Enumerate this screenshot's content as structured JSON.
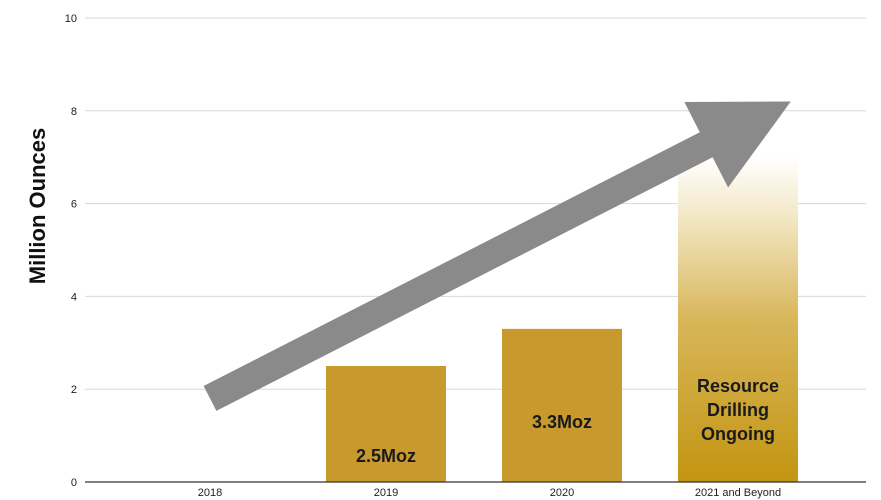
{
  "chart_data": {
    "type": "bar",
    "ylabel": "Million Ounces",
    "xlabel": "",
    "ylim": [
      0,
      10
    ],
    "yticks": [
      0,
      2,
      4,
      6,
      8,
      10
    ],
    "grid": true,
    "categories": [
      "2018",
      "2019",
      "2020",
      "2021 and Beyond"
    ],
    "values": [
      0,
      2.5,
      3.3,
      7
    ],
    "bar_labels": [
      [],
      [
        "2.5Moz"
      ],
      [
        "3.3Moz"
      ],
      [
        "Resource",
        "Drilling",
        "Ongoing"
      ]
    ],
    "last_bar_style": "gradient-fade",
    "trend_arrow": {
      "from": [
        0.0,
        1.8
      ],
      "to": [
        3.3,
        8.2
      ],
      "color": "#8a8a8a"
    },
    "colors": {
      "bar": "#c89a2e",
      "bar_last": "#c39511",
      "grid": "#d9d9d9",
      "axis": "#333333",
      "arrow": "#8a8a8a"
    }
  }
}
